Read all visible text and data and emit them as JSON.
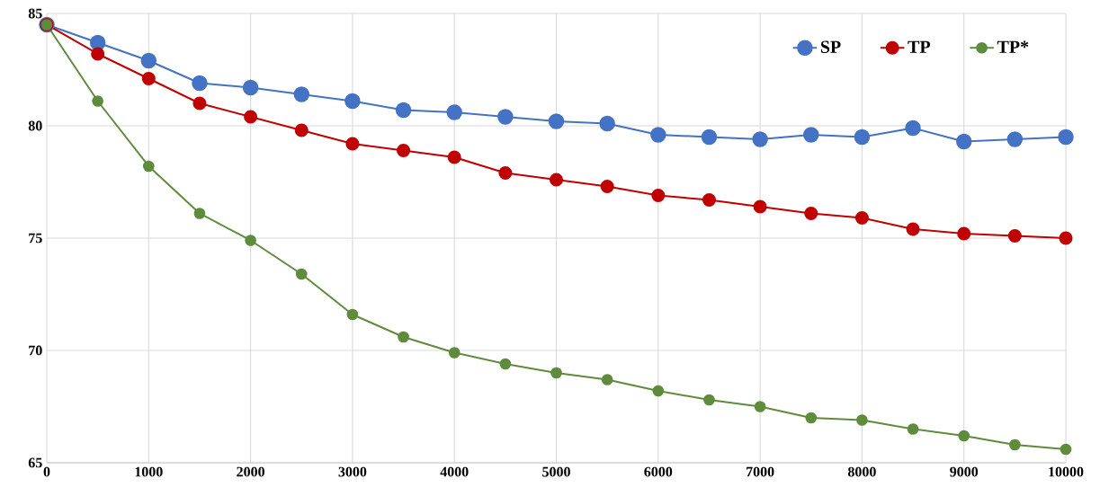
{
  "chart_data": {
    "type": "line",
    "x": [
      0,
      500,
      1000,
      1500,
      2000,
      2500,
      3000,
      3500,
      4000,
      4500,
      5000,
      5500,
      6000,
      6500,
      7000,
      7500,
      8000,
      8500,
      9000,
      9500,
      10000
    ],
    "series": [
      {
        "name": "SP",
        "color": "#4472c4",
        "values": [
          84.5,
          83.7,
          82.9,
          81.9,
          81.7,
          81.4,
          81.1,
          80.7,
          80.6,
          80.4,
          80.2,
          80.1,
          79.6,
          79.5,
          79.4,
          79.6,
          79.5,
          79.9,
          79.3,
          79.4,
          79.5
        ]
      },
      {
        "name": "TP",
        "color": "#c00000",
        "values": [
          84.5,
          83.2,
          82.1,
          81.0,
          80.4,
          79.8,
          79.2,
          78.9,
          78.6,
          77.9,
          77.6,
          77.3,
          76.9,
          76.7,
          76.4,
          76.1,
          75.9,
          75.4,
          75.2,
          75.1,
          75.0
        ]
      },
      {
        "name": "TP*",
        "color": "#5e8c3c",
        "values": [
          84.5,
          81.1,
          78.2,
          76.1,
          74.9,
          73.4,
          71.6,
          70.6,
          69.9,
          69.4,
          69.0,
          68.7,
          68.2,
          67.8,
          67.5,
          67.0,
          66.9,
          66.5,
          66.2,
          65.8,
          65.6
        ]
      }
    ],
    "xlim": [
      0,
      10000
    ],
    "xticks": [
      0,
      1000,
      2000,
      3000,
      4000,
      5000,
      6000,
      7000,
      8000,
      9000,
      10000
    ],
    "ylim": [
      65,
      85
    ],
    "yticks": [
      65,
      70,
      75,
      80,
      85
    ],
    "grid": true,
    "legend": "top right",
    "marker": "circle",
    "line_style": "solid"
  }
}
